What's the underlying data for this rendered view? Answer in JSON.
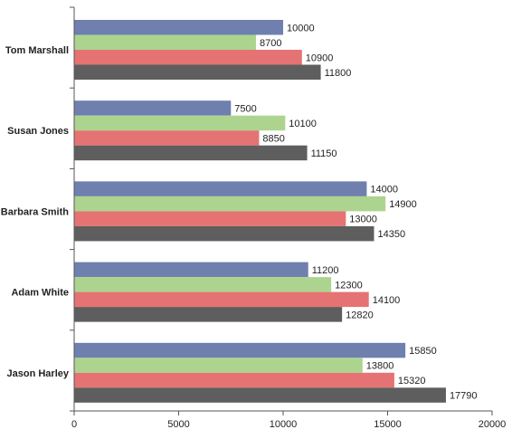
{
  "chart_data": {
    "type": "bar",
    "orientation": "horizontal",
    "title": "",
    "xlabel": "",
    "ylabel": "",
    "categories": [
      "Tom Marshall",
      "Susan Jones",
      "Barbara Smith",
      "Adam White",
      "Jason Harley"
    ],
    "series": [
      {
        "color": "#6f7fae",
        "values": [
          10000,
          7500,
          14000,
          11200,
          15850
        ]
      },
      {
        "color": "#acd48f",
        "values": [
          8700,
          10100,
          14900,
          12300,
          13800
        ]
      },
      {
        "color": "#e57373",
        "values": [
          10900,
          8850,
          13000,
          14100,
          15320
        ]
      },
      {
        "color": "#5e5e5e",
        "values": [
          11800,
          11150,
          14350,
          12820,
          17790
        ]
      }
    ],
    "xlim": [
      0,
      20000
    ],
    "x_ticks": [
      0,
      5000,
      10000,
      15000,
      20000
    ],
    "x_tick_labels": [
      "0",
      "5000",
      "10000",
      "15000",
      "20000"
    ],
    "grid": false,
    "legend": "none",
    "data_labels": true
  }
}
